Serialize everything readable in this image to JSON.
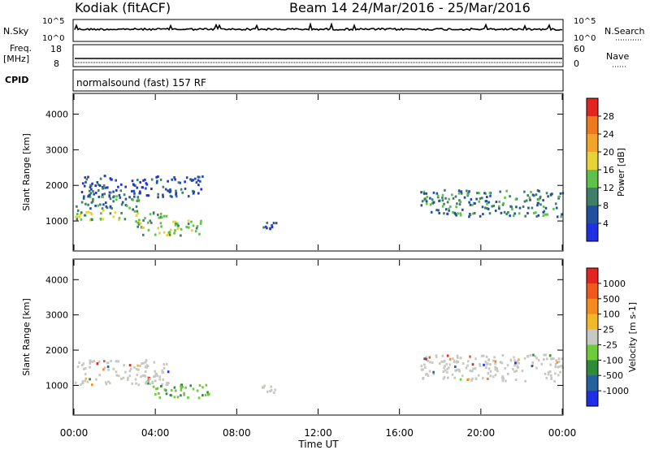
{
  "header": {
    "station": "Kodiak (fitACF)",
    "beam_date": "Beam 14  24/Mar/2016 - 25/Mar/2016"
  },
  "panels": {
    "nsky": {
      "left_label": "N.Sky",
      "right_label": "N.Search",
      "ticks_left": [
        "10^5",
        "10^0"
      ],
      "ticks_right": [
        "10^5",
        "10^0"
      ]
    },
    "freq": {
      "left_label_1": "Freq.",
      "left_label_2": "[MHz]",
      "right_label": "Nave",
      "ticks_left": [
        "18",
        "8"
      ],
      "ticks_right": [
        "60",
        "0"
      ]
    },
    "cpid": {
      "label": "CPID",
      "text": "normalsound (fast) 157 RF"
    }
  },
  "chart_data": [
    {
      "type": "heatmap",
      "title": "",
      "ylabel": "Slant Range [km]",
      "xlabel": "",
      "ylim": [
        180,
        4560
      ],
      "yticks": [
        "1000",
        "2000",
        "3000",
        "4000"
      ],
      "colorbar": {
        "label": "Power [dB]",
        "ticks": [
          "4",
          "8",
          "12",
          "16",
          "20",
          "24",
          "28"
        ],
        "colors": [
          "#1f2fe6",
          "#22509e",
          "#3f7f6a",
          "#5fc04a",
          "#e8d23a",
          "#f2a32a",
          "#ee7a1e",
          "#e2251e"
        ]
      },
      "regions": [
        {
          "t0": 0.0,
          "t1": 3.2,
          "r0": 1350,
          "r1": 1750,
          "level": "mid"
        },
        {
          "t0": 0.0,
          "t1": 4.6,
          "r0": 1050,
          "r1": 1350,
          "level": "high"
        },
        {
          "t0": 3.0,
          "t1": 6.3,
          "r0": 600,
          "r1": 1050,
          "level": "high"
        },
        {
          "t0": 0.3,
          "t1": 6.3,
          "r0": 1700,
          "r1": 2300,
          "level": "low"
        },
        {
          "t0": 9.2,
          "t1": 9.9,
          "r0": 650,
          "r1": 1050,
          "level": "low"
        },
        {
          "t0": 17.0,
          "t1": 24.0,
          "r0": 1150,
          "r1": 1900,
          "level": "mid"
        }
      ]
    },
    {
      "type": "heatmap",
      "title": "",
      "ylabel": "Slant Range [km]",
      "xlabel": "Time UT",
      "ylim": [
        180,
        4560
      ],
      "yticks": [
        "1000",
        "2000",
        "3000",
        "4000"
      ],
      "xticks": [
        "00:00",
        "04:00",
        "08:00",
        "12:00",
        "16:00",
        "20:00",
        "00:00"
      ],
      "colorbar": {
        "label": "Velocity [m s-1]",
        "ticks": [
          "1000",
          "500",
          "100",
          "25",
          "-25",
          "-100",
          "-500",
          "-1000"
        ],
        "colors": [
          "#1f2fe6",
          "#26609e",
          "#2f8a3a",
          "#6ecb3a",
          "#c8c8c2",
          "#f2b82a",
          "#f58a1e",
          "#ef5a1a",
          "#e2251e"
        ]
      },
      "regions": [
        {
          "t0": 0.0,
          "t1": 4.6,
          "r0": 1050,
          "r1": 1750,
          "level": "gray"
        },
        {
          "t0": 3.8,
          "t1": 6.6,
          "r0": 650,
          "r1": 1050,
          "level": "green"
        },
        {
          "t0": 9.2,
          "t1": 9.9,
          "r0": 650,
          "r1": 1050,
          "level": "gray"
        },
        {
          "t0": 17.0,
          "t1": 24.0,
          "r0": 1150,
          "r1": 1900,
          "level": "gray"
        }
      ]
    }
  ]
}
